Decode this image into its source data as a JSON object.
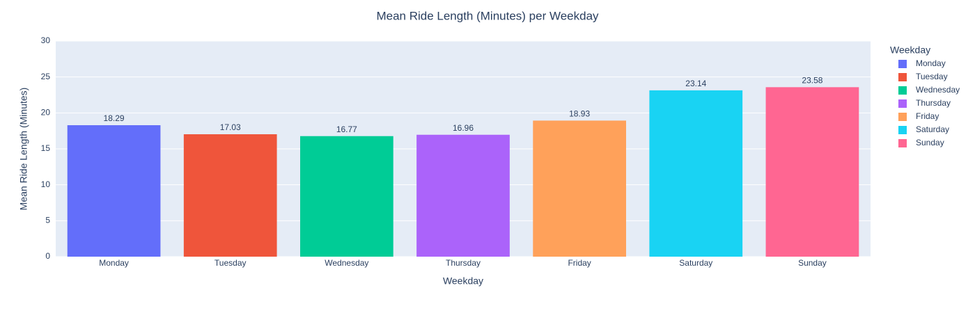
{
  "chart_data": {
    "type": "bar",
    "title": "Mean Ride Length (Minutes) per Weekday",
    "xlabel": "Weekday",
    "ylabel": "Mean Ride Length (Minutes)",
    "legend_title": "Weekday",
    "legend": "right",
    "grid": true,
    "categories": [
      "Monday",
      "Tuesday",
      "Wednesday",
      "Thursday",
      "Friday",
      "Saturday",
      "Sunday"
    ],
    "series": [
      {
        "name": "Monday",
        "color": "#636efa",
        "values": [
          18.29,
          null,
          null,
          null,
          null,
          null,
          null
        ]
      },
      {
        "name": "Tuesday",
        "color": "#ef553b",
        "values": [
          null,
          17.03,
          null,
          null,
          null,
          null,
          null
        ]
      },
      {
        "name": "Wednesday",
        "color": "#00cc96",
        "values": [
          null,
          null,
          16.77,
          null,
          null,
          null,
          null
        ]
      },
      {
        "name": "Thursday",
        "color": "#ab63fa",
        "values": [
          null,
          null,
          null,
          16.96,
          null,
          null,
          null
        ]
      },
      {
        "name": "Friday",
        "color": "#ffa15a",
        "values": [
          null,
          null,
          null,
          null,
          18.93,
          null,
          null
        ]
      },
      {
        "name": "Saturday",
        "color": "#19d3f3",
        "values": [
          null,
          null,
          null,
          null,
          null,
          23.14,
          null
        ]
      },
      {
        "name": "Sunday",
        "color": "#ff6692",
        "values": [
          null,
          null,
          null,
          null,
          null,
          null,
          23.58
        ]
      }
    ],
    "ylim": [
      0,
      30
    ],
    "yticks": [
      0,
      5,
      10,
      15,
      20,
      25,
      30
    ]
  }
}
